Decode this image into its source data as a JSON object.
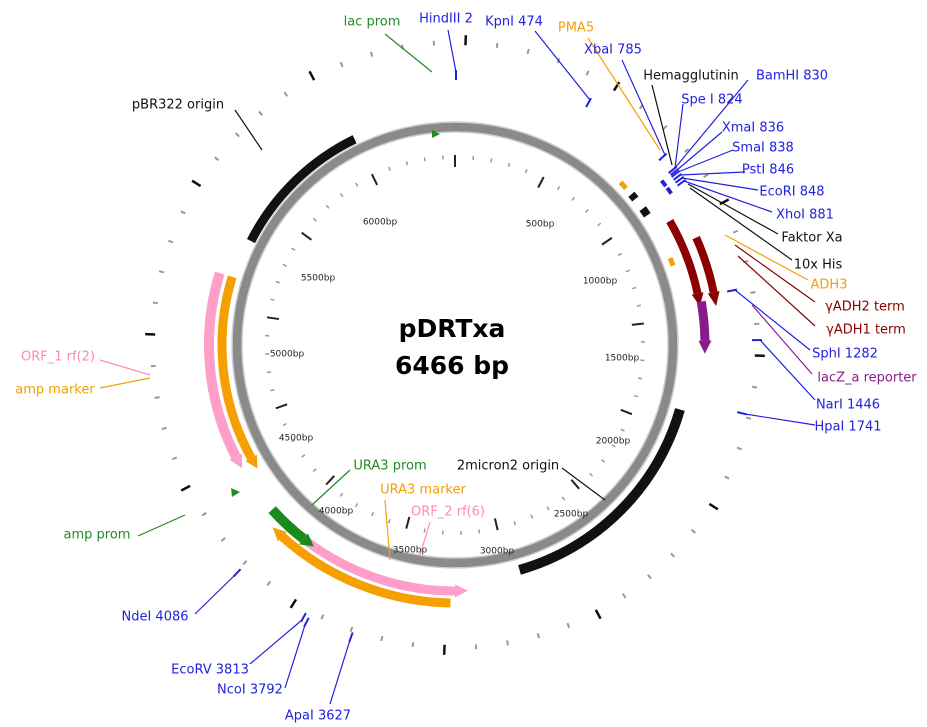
{
  "map": {
    "title": "pDRTxa",
    "size": "6466 bp",
    "scale_labels": [
      "500bp",
      "1000bp",
      "1500bp",
      "2000bp",
      "2500bp",
      "3000bp",
      "3500bp",
      "4000bp",
      "4500bp",
      "5000bp",
      "5500bp",
      "6000bp"
    ],
    "labels": [
      {
        "text": "lac prom",
        "color": "#228b22"
      },
      {
        "text": "HindIII 2",
        "color": "#2222dd"
      },
      {
        "text": "KpnI 474",
        "color": "#2222dd"
      },
      {
        "text": "PMA5",
        "color": "#f5a000"
      },
      {
        "text": "XbaI 785",
        "color": "#2222dd"
      },
      {
        "text": "Hemagglutinin",
        "color": "#111111"
      },
      {
        "text": "BamHI 830",
        "color": "#2222dd"
      },
      {
        "text": "Spe I 824",
        "color": "#2222dd"
      },
      {
        "text": "XmaI 836",
        "color": "#2222dd"
      },
      {
        "text": "SmaI 838",
        "color": "#2222dd"
      },
      {
        "text": "PstI 846",
        "color": "#2222dd"
      },
      {
        "text": "EcoRI 848",
        "color": "#2222dd"
      },
      {
        "text": "XhoI 881",
        "color": "#2222dd"
      },
      {
        "text": "Faktor Xa",
        "color": "#111111"
      },
      {
        "text": "10x His",
        "color": "#111111"
      },
      {
        "text": "ADH3",
        "color": "#f5a000"
      },
      {
        "text": "γADH2 term",
        "color": "#8b0000"
      },
      {
        "text": "γADH1 term",
        "color": "#8b0000"
      },
      {
        "text": "SphI 1282",
        "color": "#2222dd"
      },
      {
        "text": "lacZ_a reporter",
        "color": "#8b1a8b"
      },
      {
        "text": "NarI 1446",
        "color": "#2222dd"
      },
      {
        "text": "HpaI 1741",
        "color": "#2222dd"
      },
      {
        "text": "2micron2 origin",
        "color": "#111111"
      },
      {
        "text": "URA3 prom",
        "color": "#228b22"
      },
      {
        "text": "URA3 marker",
        "color": "#f5a000"
      },
      {
        "text": "ORF_2 rf(6)",
        "color": "#ff88bb"
      },
      {
        "text": "ORF_1 rf(2)",
        "color": "#ff88bb"
      },
      {
        "text": "amp marker",
        "color": "#f5a000"
      },
      {
        "text": "amp prom",
        "color": "#228b22"
      },
      {
        "text": "NdeI 4086",
        "color": "#2222dd"
      },
      {
        "text": "EcoRV 3813",
        "color": "#2222dd"
      },
      {
        "text": "NcoI 3792",
        "color": "#2222dd"
      },
      {
        "text": "ApaI 3627",
        "color": "#2222dd"
      },
      {
        "text": "pBR322 origin",
        "color": "#111111"
      }
    ]
  }
}
